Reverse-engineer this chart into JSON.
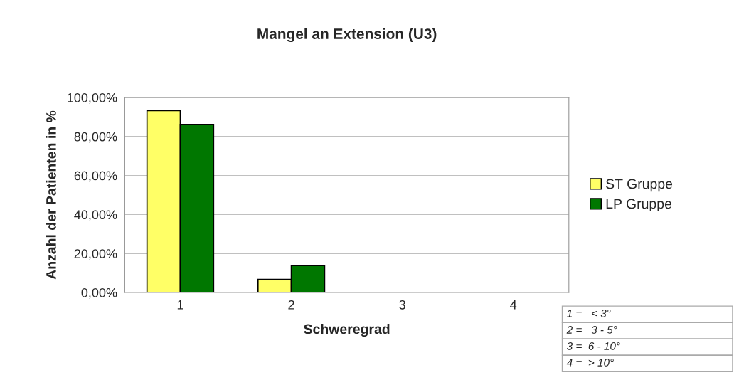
{
  "chart_data": {
    "type": "bar",
    "title": "Mangel an Extension (U3)",
    "xlabel": "Schweregrad",
    "ylabel": "Anzahl der Patienten in %",
    "categories": [
      "1",
      "2",
      "3",
      "4"
    ],
    "series": [
      {
        "name": "ST Gruppe",
        "color": "#ffff66",
        "values": [
          93.3,
          6.7,
          0,
          0
        ]
      },
      {
        "name": "LP Gruppe",
        "color": "#007700",
        "values": [
          86.2,
          13.8,
          0,
          0
        ]
      }
    ],
    "ylim": [
      0,
      100
    ],
    "yticks": [
      {
        "value": 0,
        "label": "0,00%"
      },
      {
        "value": 20,
        "label": "20,00%"
      },
      {
        "value": 40,
        "label": "40,00%"
      },
      {
        "value": 60,
        "label": "60,00%"
      },
      {
        "value": 80,
        "label": "80,00%"
      },
      {
        "value": 100,
        "label": "100,00%"
      }
    ],
    "grid": "y",
    "legend": "right",
    "annotations": [
      "1 =   < 3°",
      "2 =   3 - 5°",
      "3 =  6 - 10°",
      "4 =  > 10°"
    ]
  }
}
